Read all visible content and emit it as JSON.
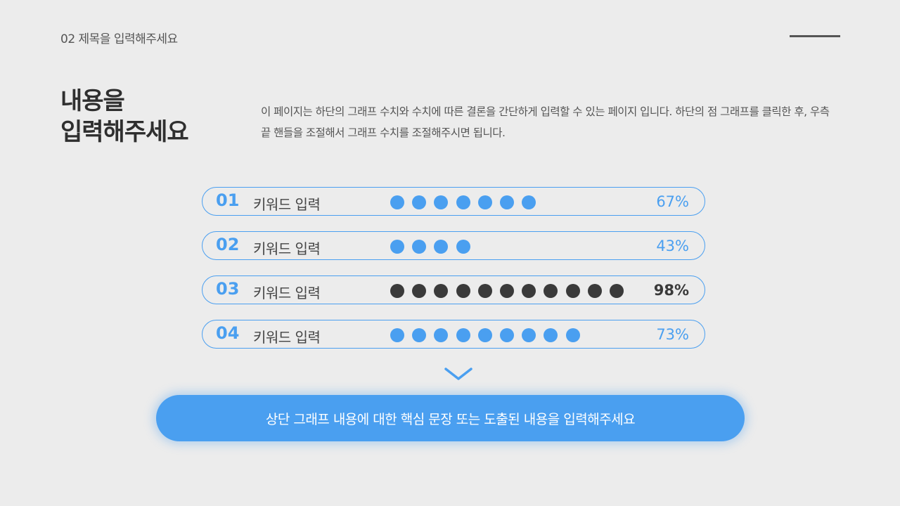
{
  "header": {
    "label": "02 제목을 입력해주세요"
  },
  "title": {
    "line1": "내용을",
    "line2": "입력해주세요"
  },
  "description": "이 페이지는 하단의 그래프 수치와 수치에 따른 결론을 간단하게 입력할 수 있는 페이지 입니다. 하단의 점 그래프를 클릭한 후, 우측 끝 핸들을 조절해서 그래프 수치를 조절해주시면 됩니다.",
  "chart_data": {
    "type": "bar",
    "categories": [
      "키워드 입력",
      "키워드 입력",
      "키워드 입력",
      "키워드 입력"
    ],
    "values": [
      67,
      43,
      98,
      73
    ],
    "ylim": [
      0,
      100
    ]
  },
  "rows": [
    {
      "num": "01",
      "label": "키워드 입력",
      "percent": "67%",
      "value": 67,
      "dots": 7,
      "highlight": false
    },
    {
      "num": "02",
      "label": "키워드 입력",
      "percent": "43%",
      "value": 43,
      "dots": 4,
      "highlight": false
    },
    {
      "num": "03",
      "label": "키워드 입력",
      "percent": "98%",
      "value": 98,
      "dots": 11,
      "highlight": true
    },
    {
      "num": "04",
      "label": "키워드 입력",
      "percent": "73%",
      "value": 73,
      "dots": 9,
      "highlight": false
    }
  ],
  "icons": {
    "chevron": "chevron-down-icon"
  },
  "colors": {
    "accent": "#4a9ff0",
    "dark": "#3a3a3a",
    "background": "#ececec"
  },
  "conclusion": "상단 그래프 내용에 대한 핵심 문장 또는 도출된 내용을 입력해주세요"
}
